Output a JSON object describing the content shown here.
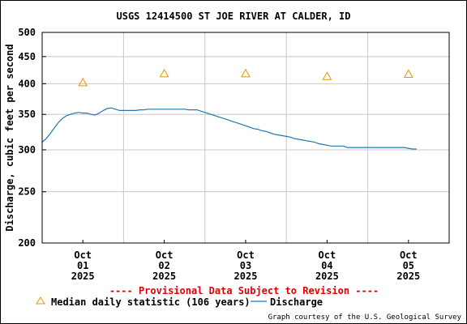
{
  "chart_data": {
    "type": "line",
    "title": "USGS 12414500 ST JOE RIVER AT CALDER, ID",
    "ylabel": "Discharge, cubic feet per second",
    "xlabel": "",
    "y_scale": "log",
    "ylim": [
      200,
      500
    ],
    "y_ticks": [
      200,
      250,
      300,
      350,
      400,
      450,
      500
    ],
    "x_ticks": [
      {
        "l1": "Oct",
        "l2": "01",
        "l3": "2025",
        "day": 1
      },
      {
        "l1": "Oct",
        "l2": "02",
        "l3": "2025",
        "day": 2
      },
      {
        "l1": "Oct",
        "l2": "03",
        "l3": "2025",
        "day": 3
      },
      {
        "l1": "Oct",
        "l2": "04",
        "l3": "2025",
        "day": 4
      },
      {
        "l1": "Oct",
        "l2": "05",
        "l3": "2025",
        "day": 5
      }
    ],
    "x_range_days": [
      0.5,
      5.5
    ],
    "grid": true,
    "colors": {
      "discharge": "#1f78b4",
      "median": "#e69500",
      "grid": "#c8c8c8",
      "provisional": "#e00000"
    },
    "series": [
      {
        "name": "Discharge",
        "kind": "line",
        "points": [
          [
            0.5,
            310
          ],
          [
            0.55,
            315
          ],
          [
            0.6,
            322
          ],
          [
            0.65,
            330
          ],
          [
            0.7,
            338
          ],
          [
            0.75,
            344
          ],
          [
            0.8,
            348
          ],
          [
            0.85,
            350
          ],
          [
            0.9,
            352
          ],
          [
            0.95,
            353
          ],
          [
            1.0,
            352
          ],
          [
            1.05,
            352
          ],
          [
            1.1,
            350
          ],
          [
            1.15,
            349
          ],
          [
            1.2,
            352
          ],
          [
            1.25,
            356
          ],
          [
            1.3,
            359
          ],
          [
            1.35,
            360
          ],
          [
            1.4,
            358
          ],
          [
            1.45,
            356
          ],
          [
            1.5,
            356
          ],
          [
            1.55,
            356
          ],
          [
            1.6,
            356
          ],
          [
            1.65,
            356
          ],
          [
            1.7,
            357
          ],
          [
            1.75,
            357
          ],
          [
            1.8,
            358
          ],
          [
            1.85,
            358
          ],
          [
            1.9,
            358
          ],
          [
            1.95,
            358
          ],
          [
            2.0,
            358
          ],
          [
            2.05,
            358
          ],
          [
            2.1,
            358
          ],
          [
            2.15,
            358
          ],
          [
            2.2,
            358
          ],
          [
            2.25,
            358
          ],
          [
            2.3,
            357
          ],
          [
            2.35,
            357
          ],
          [
            2.4,
            357
          ],
          [
            2.45,
            355
          ],
          [
            2.5,
            353
          ],
          [
            2.55,
            351
          ],
          [
            2.6,
            349
          ],
          [
            2.65,
            347
          ],
          [
            2.7,
            345
          ],
          [
            2.75,
            343
          ],
          [
            2.8,
            341
          ],
          [
            2.85,
            339
          ],
          [
            2.9,
            337
          ],
          [
            2.95,
            335
          ],
          [
            3.0,
            333
          ],
          [
            3.05,
            331
          ],
          [
            3.1,
            329
          ],
          [
            3.15,
            328
          ],
          [
            3.2,
            326
          ],
          [
            3.25,
            325
          ],
          [
            3.3,
            323
          ],
          [
            3.35,
            321
          ],
          [
            3.4,
            320
          ],
          [
            3.45,
            319
          ],
          [
            3.5,
            318
          ],
          [
            3.55,
            317
          ],
          [
            3.6,
            315
          ],
          [
            3.65,
            314
          ],
          [
            3.7,
            313
          ],
          [
            3.75,
            312
          ],
          [
            3.8,
            311
          ],
          [
            3.85,
            310
          ],
          [
            3.9,
            308
          ],
          [
            3.95,
            307
          ],
          [
            4.0,
            306
          ],
          [
            4.05,
            305
          ],
          [
            4.1,
            305
          ],
          [
            4.15,
            305
          ],
          [
            4.2,
            305
          ],
          [
            4.25,
            303
          ],
          [
            4.3,
            303
          ],
          [
            4.35,
            303
          ],
          [
            4.4,
            303
          ],
          [
            4.45,
            303
          ],
          [
            4.5,
            303
          ],
          [
            4.55,
            303
          ],
          [
            4.6,
            303
          ],
          [
            4.65,
            303
          ],
          [
            4.7,
            303
          ],
          [
            4.75,
            303
          ],
          [
            4.8,
            303
          ],
          [
            4.85,
            303
          ],
          [
            4.9,
            303
          ],
          [
            4.95,
            303
          ],
          [
            5.0,
            302
          ],
          [
            5.05,
            301
          ],
          [
            5.1,
            301
          ]
        ]
      },
      {
        "name": "Median daily statistic (106 years)",
        "kind": "marker",
        "points": [
          [
            1.0,
            402
          ],
          [
            2.0,
            418
          ],
          [
            3.0,
            418
          ],
          [
            4.0,
            413
          ],
          [
            5.0,
            417
          ]
        ]
      }
    ],
    "legend": {
      "position": "bottom",
      "median_label": "Median daily statistic (106 years)",
      "discharge_label": "Discharge"
    },
    "annotations": {
      "provisional": "---- Provisional Data Subject to Revision ----",
      "courtesy": "Graph courtesy of the U.S. Geological Survey"
    }
  }
}
